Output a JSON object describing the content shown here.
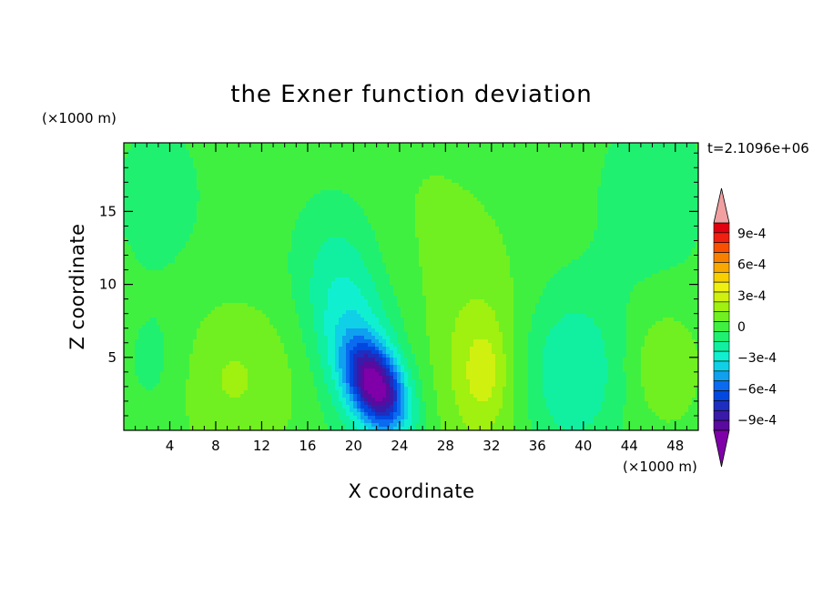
{
  "chart_data": {
    "type": "heatmap",
    "title": "the Exner function deviation",
    "xlabel": "X coordinate",
    "ylabel": "Z coordinate",
    "x_unit": "(×1000 m)",
    "y_unit": "(×1000 m)",
    "time_label": "t=2.1096e+06",
    "xlim": [
      0,
      50
    ],
    "ylim": [
      0,
      19.7
    ],
    "x_ticks": [
      4,
      8,
      12,
      16,
      20,
      24,
      28,
      32,
      36,
      40,
      44,
      48
    ],
    "y_ticks": [
      5,
      10,
      15
    ],
    "colorbar": {
      "levels": [
        -0.0011,
        -0.001,
        -0.0009,
        -0.0008,
        -0.0007,
        -0.0006,
        -0.0005,
        -0.0004,
        -0.0003,
        -0.0002,
        -0.0001,
        0,
        0.0001,
        0.0002,
        0.0003,
        0.0004,
        0.0005,
        0.0006,
        0.0007,
        0.0008,
        0.0009,
        0.001,
        0.0011
      ],
      "colors": [
        "#7f00a8",
        "#5a0a9e",
        "#3a1aa8",
        "#1e2ec0",
        "#0048e0",
        "#0a6af0",
        "#10a0f0",
        "#10d0e8",
        "#10f0d0",
        "#10f0a0",
        "#20f070",
        "#40f040",
        "#70f020",
        "#a0f010",
        "#d0f010",
        "#f0f010",
        "#f8d000",
        "#f8a800",
        "#f88000",
        "#f85000",
        "#f02010",
        "#e00010",
        "#f0a0a0"
      ],
      "tick_labels": [
        "9e-4",
        "6e-4",
        "3e-4",
        "0",
        "−3e-4",
        "−6e-4",
        "−9e-4"
      ],
      "tick_values": [
        0.0009,
        0.0006,
        0.0003,
        0,
        -0.0003,
        -0.0006,
        -0.0009
      ]
    },
    "field_sources": [
      {
        "x": 22,
        "z": 3,
        "amp": -0.0009,
        "sx": 1.6,
        "sz": 2.0,
        "tilt": -0.35
      },
      {
        "x": 20.5,
        "z": 5,
        "amp": -0.00035,
        "sx": 2.6,
        "sz": 4.5,
        "tilt": -0.25
      },
      {
        "x": 39,
        "z": 4,
        "amp": -0.00025,
        "sx": 3.2,
        "sz": 4.0,
        "tilt": 0
      },
      {
        "x": 3,
        "z": 4.5,
        "amp": -0.0001,
        "sx": 2.2,
        "sz": 3.0,
        "tilt": 0
      },
      {
        "x": 3,
        "z": 16,
        "amp": -0.0001,
        "sx": 3,
        "sz": 4,
        "tilt": 0
      },
      {
        "x": 46,
        "z": 16,
        "amp": -0.0001,
        "sx": 4,
        "sz": 5,
        "tilt": 0
      },
      {
        "x": 19,
        "z": 12,
        "amp": -0.00012,
        "sx": 3,
        "sz": 4,
        "tilt": 0
      },
      {
        "x": 9.5,
        "z": 3.5,
        "amp": 0.00016,
        "sx": 4,
        "sz": 3.5,
        "tilt": 0
      },
      {
        "x": 31,
        "z": 4,
        "amp": 0.00022,
        "sx": 2.6,
        "sz": 4.6,
        "tilt": 0
      },
      {
        "x": 31.5,
        "z": 4,
        "amp": 0.0001,
        "sx": 1.2,
        "sz": 2.0,
        "tilt": 0
      },
      {
        "x": 47,
        "z": 4.5,
        "amp": 0.00015,
        "sx": 2.2,
        "sz": 2.8,
        "tilt": 0
      },
      {
        "x": 26,
        "z": 14,
        "amp": 6e-05,
        "sx": 6,
        "sz": 6,
        "tilt": 0
      }
    ]
  }
}
